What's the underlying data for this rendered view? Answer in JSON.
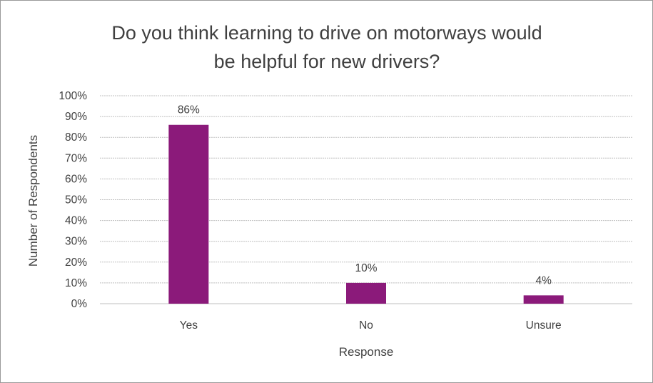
{
  "chart_data": {
    "type": "bar",
    "title_lines": [
      "Do you think learning to drive on motorways would",
      "be helpful for new drivers?"
    ],
    "xlabel": "Response",
    "ylabel": "Number of Respondents",
    "categories": [
      "Yes",
      "No",
      "Unsure"
    ],
    "values": [
      86,
      10,
      4
    ],
    "data_labels": [
      "86%",
      "10%",
      "4%"
    ],
    "ylim": [
      0,
      100
    ],
    "y_ticks": [
      "0%",
      "10%",
      "20%",
      "30%",
      "40%",
      "50%",
      "60%",
      "70%",
      "80%",
      "90%",
      "100%"
    ],
    "grid": true,
    "legend": "none",
    "colors": {
      "bar": "#8B1A7A",
      "gridline": "#BFBFBF",
      "text": "#404040"
    }
  }
}
